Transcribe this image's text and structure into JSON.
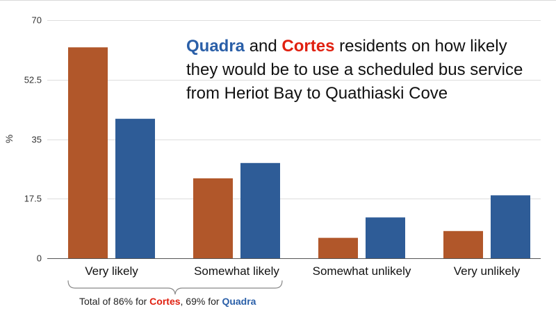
{
  "colors": {
    "cortes": "#B1572A",
    "quadra": "#2E5C97",
    "cortes_text": "#E02010",
    "quadra_text": "#2A5FA8"
  },
  "chart_data": {
    "type": "bar",
    "title": "Quadra and Cortes residents on how likely they would be to use a scheduled bus service from Heriot Bay to Quathiaski Cove",
    "xlabel": "",
    "ylabel": "%",
    "ylim": [
      0,
      70
    ],
    "yticks": [
      "0",
      "17.5",
      "35",
      "52.5",
      "70"
    ],
    "categories": [
      "Very likely",
      "Somewhat likely",
      "Somewhat unlikely",
      "Very unlikely"
    ],
    "series": [
      {
        "name": "Cortes",
        "values": [
          62,
          23.5,
          6,
          8
        ]
      },
      {
        "name": "Quadra",
        "values": [
          41,
          28,
          12,
          18.5
        ]
      }
    ],
    "grid": true
  },
  "title_parts": {
    "quadra": "Quadra",
    "and": " and ",
    "cortes": "Cortes",
    "rest": " residents on how likely they would be to use a scheduled bus service from Heriot Bay to Quathiaski Cove"
  },
  "annotation": {
    "prefix": "Total of 86% for ",
    "cortes": "Cortes",
    "middle": ",  69% for ",
    "quadra": "Quadra"
  }
}
